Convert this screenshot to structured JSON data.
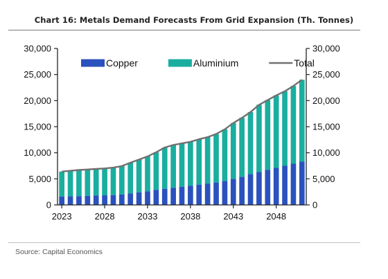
{
  "title": "Chart 16: Metals Demand Forecasts From Grid Expansion (Th. Tonnes)",
  "source": "Source: Capital Economics",
  "chart_data": {
    "type": "bar",
    "stacked": true,
    "x": [
      2023,
      2024,
      2025,
      2026,
      2027,
      2028,
      2029,
      2030,
      2031,
      2032,
      2033,
      2034,
      2035,
      2036,
      2037,
      2038,
      2039,
      2040,
      2041,
      2042,
      2043,
      2044,
      2045,
      2046,
      2047,
      2048,
      2049,
      2050,
      2051
    ],
    "x_tick_labels": [
      "2023",
      "2028",
      "2033",
      "2038",
      "2043",
      "2048"
    ],
    "y_tick_labels": [
      "0",
      "5,000",
      "10,000",
      "15,000",
      "20,000",
      "25,000",
      "30,000"
    ],
    "ylim": [
      0,
      30000
    ],
    "secondary_axis": true,
    "legend_position": "top-left",
    "series": [
      {
        "name": "Copper",
        "color": "#2a52be",
        "values": [
          1600,
          1650,
          1700,
          1750,
          1800,
          1850,
          1900,
          2000,
          2200,
          2400,
          2600,
          2900,
          3100,
          3300,
          3500,
          3700,
          3900,
          4100,
          4300,
          4600,
          5000,
          5400,
          5900,
          6300,
          6700,
          7100,
          7500,
          7900,
          8300
        ]
      },
      {
        "name": "Aluminium",
        "color": "#1aae9f",
        "values": [
          4800,
          4900,
          5000,
          5050,
          5100,
          5150,
          5250,
          5450,
          5900,
          6300,
          6700,
          7200,
          7900,
          8200,
          8300,
          8400,
          8700,
          8900,
          9300,
          9900,
          10700,
          11300,
          11900,
          12900,
          13400,
          13900,
          14300,
          14900,
          15700
        ]
      },
      {
        "name": "Total",
        "color": "#707070",
        "type": "line",
        "values": [
          6400,
          6550,
          6700,
          6800,
          6900,
          7000,
          7150,
          7450,
          8100,
          8700,
          9300,
          10100,
          11000,
          11500,
          11800,
          12100,
          12600,
          13000,
          13600,
          14500,
          15700,
          16700,
          17800,
          19200,
          20100,
          21000,
          21800,
          22800,
          24000
        ]
      }
    ]
  }
}
